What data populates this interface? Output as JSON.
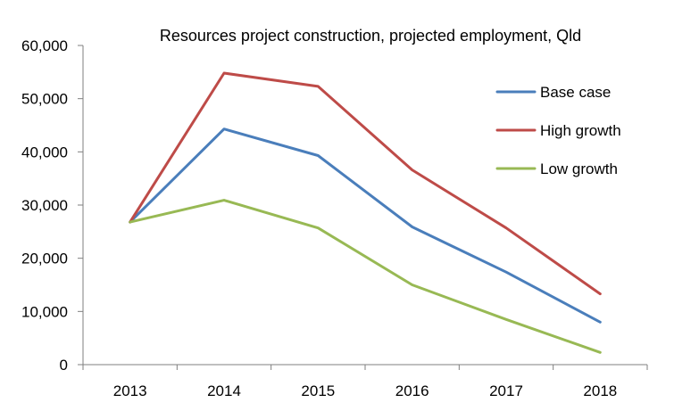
{
  "chart_data": {
    "type": "line",
    "title": "Resources project construction, projected employment, Qld",
    "xlabel": "",
    "ylabel": "",
    "categories": [
      "2013",
      "2014",
      "2015",
      "2016",
      "2017",
      "2018"
    ],
    "ylim": [
      0,
      60000
    ],
    "y_ticks": [
      0,
      10000,
      20000,
      30000,
      40000,
      50000,
      60000
    ],
    "y_tick_labels": [
      "0",
      "10,000",
      "20,000",
      "30,000",
      "40,000",
      "50,000",
      "60,000"
    ],
    "grid": false,
    "legend_position": "right",
    "series": [
      {
        "name": "Base case",
        "color": "#4a7ebb",
        "values": [
          26800,
          44300,
          39300,
          25900,
          17400,
          8000
        ]
      },
      {
        "name": "High growth",
        "color": "#be4b48",
        "values": [
          26800,
          54800,
          52300,
          36600,
          25700,
          13300
        ]
      },
      {
        "name": "Low growth",
        "color": "#98b954",
        "values": [
          26800,
          30900,
          25700,
          15000,
          8500,
          2300
        ]
      }
    ]
  }
}
